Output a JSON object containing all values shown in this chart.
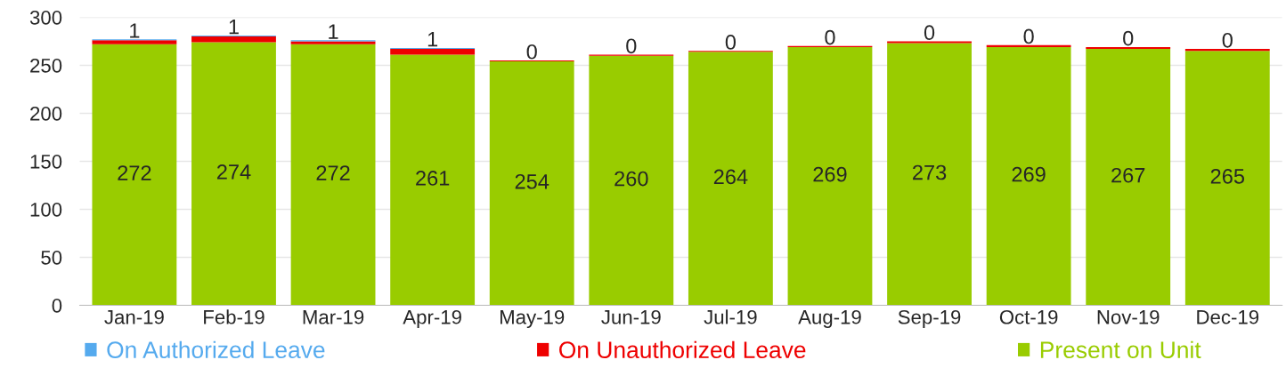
{
  "chart_data": {
    "type": "bar",
    "stacked": true,
    "categories": [
      "Jan-19",
      "Feb-19",
      "Mar-19",
      "Apr-19",
      "May-19",
      "Jun-19",
      "Jul-19",
      "Aug-19",
      "Sep-19",
      "Oct-19",
      "Nov-19",
      "Dec-19"
    ],
    "series": [
      {
        "name": "Present on Unit",
        "color": "#99cc00",
        "values": [
          272,
          274,
          272,
          261,
          254,
          260,
          264,
          269,
          273,
          269,
          267,
          265
        ],
        "value_labels": [
          "272",
          "274",
          "272",
          "261",
          "254",
          "260",
          "264",
          "269",
          "273",
          "269",
          "267",
          "265"
        ]
      },
      {
        "name": "On Unauthorized Leave",
        "color": "#ee0000",
        "values": [
          4,
          6,
          3,
          6,
          1,
          1,
          1,
          1,
          2,
          2,
          2,
          2
        ]
      },
      {
        "name": "On Authorized Leave",
        "color": "#55aaee",
        "values": [
          1,
          1,
          1,
          1,
          0,
          0,
          0,
          0,
          0,
          0,
          0,
          0
        ],
        "value_labels": [
          "1",
          "1",
          "1",
          "1",
          "0",
          "0",
          "0",
          "0",
          "0",
          "0",
          "0",
          "0"
        ]
      }
    ],
    "ylim": [
      0,
      300
    ],
    "yticks": [
      0,
      50,
      100,
      150,
      200,
      250,
      300
    ],
    "grid": "y",
    "legend": "bottom"
  }
}
